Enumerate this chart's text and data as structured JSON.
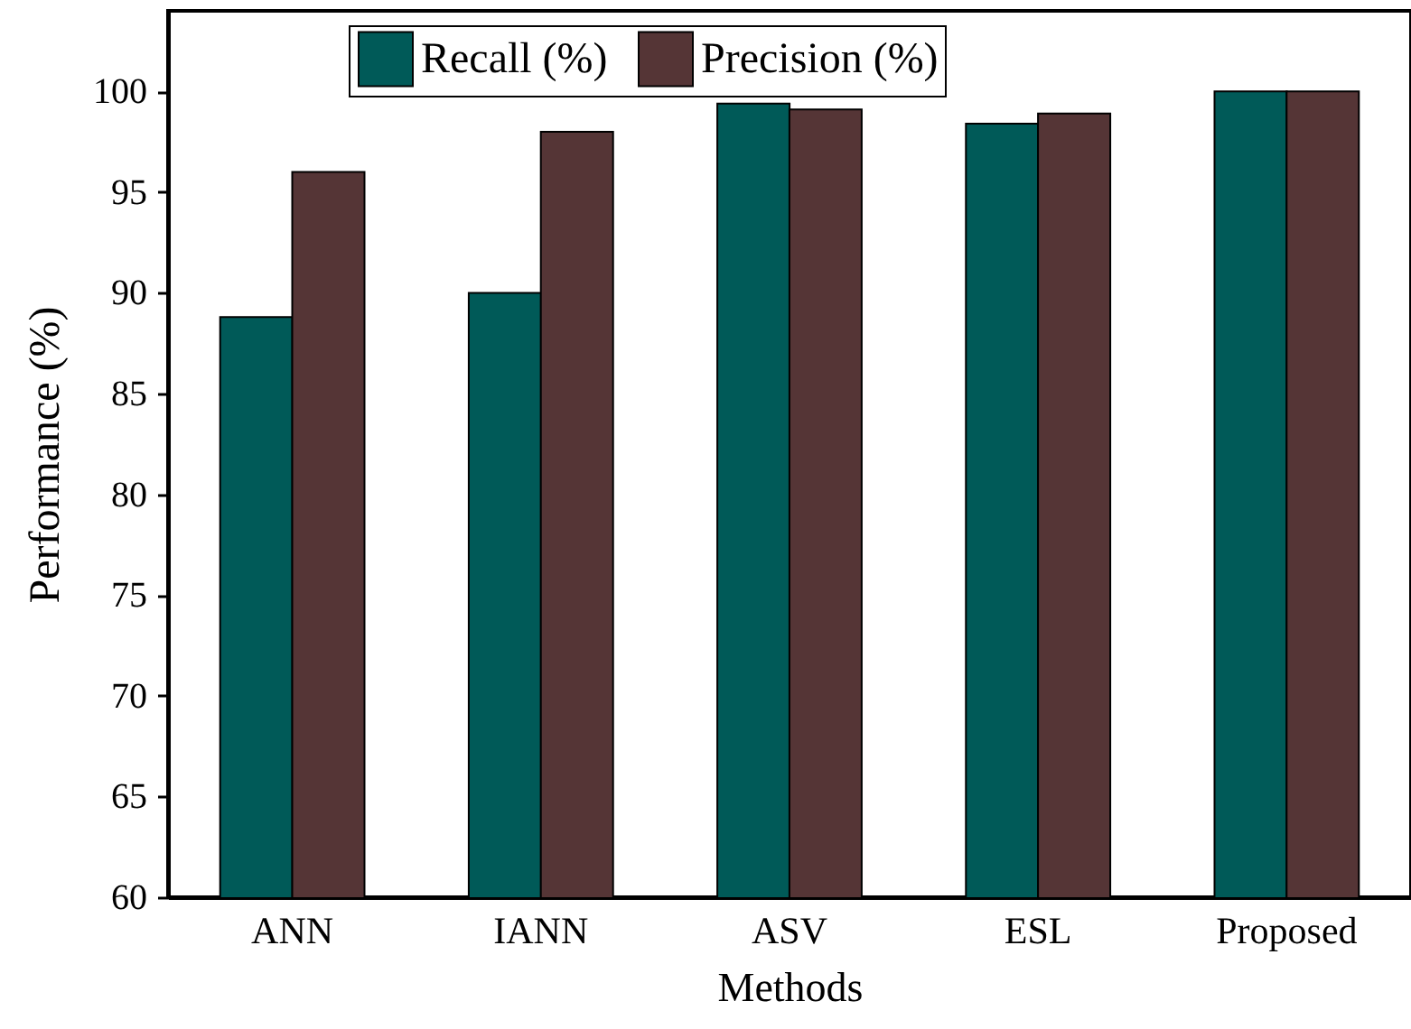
{
  "chart_data": {
    "type": "bar",
    "xlabel": "Methods",
    "ylabel": "Performance (%)",
    "categories": [
      "ANN",
      "IANN",
      "ASV",
      "ESL",
      "Proposed"
    ],
    "series": [
      {
        "name": "Recall (%)",
        "color": "#005a58",
        "values": [
          88.8,
          90,
          99.4,
          98.4,
          100
        ]
      },
      {
        "name": "Precision (%)",
        "color": "#553536",
        "values": [
          96,
          98,
          99.1,
          98.9,
          100
        ]
      }
    ],
    "ylim": [
      60,
      104
    ],
    "yticks": [
      60,
      65,
      70,
      75,
      80,
      85,
      90,
      95,
      100
    ],
    "grid": false,
    "legend": "top"
  }
}
